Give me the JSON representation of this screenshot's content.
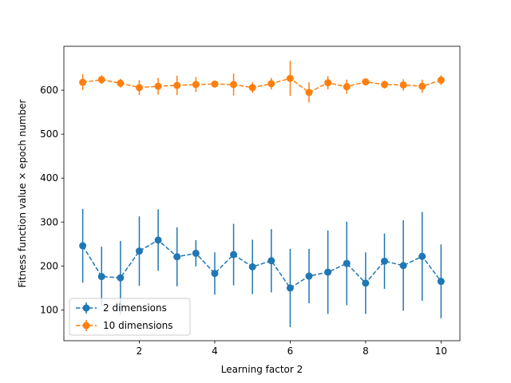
{
  "chart_data": {
    "type": "line",
    "xlabel": "Learning factor 2",
    "ylabel": "Fitness function value × epoch number",
    "xlim": [
      0.0,
      10.5
    ],
    "ylim": [
      30,
      700
    ],
    "xticks": [
      2,
      4,
      6,
      8,
      10
    ],
    "yticks": [
      100,
      200,
      300,
      400,
      500,
      600
    ],
    "legend_position": "lower-left",
    "grid": false,
    "x": [
      0.5,
      1.0,
      1.5,
      2.0,
      2.5,
      3.0,
      3.5,
      4.0,
      4.5,
      5.0,
      5.5,
      6.0,
      6.5,
      7.0,
      7.5,
      8.0,
      8.5,
      9.0,
      9.5,
      10.0
    ],
    "series": [
      {
        "name": "2 dimensions",
        "color": "#1f77b4",
        "values": [
          246,
          176,
          173,
          234,
          259,
          221,
          229,
          183,
          226,
          198,
          212,
          150,
          177,
          186,
          206,
          161,
          211,
          201,
          222,
          165
        ],
        "errors": [
          84,
          68,
          84,
          79,
          70,
          67,
          30,
          48,
          70,
          62,
          72,
          89,
          62,
          95,
          95,
          70,
          63,
          103,
          101,
          84
        ]
      },
      {
        "name": "10 dimensions",
        "color": "#ff7f0e",
        "values": [
          618,
          624,
          616,
          606,
          609,
          611,
          613,
          614,
          613,
          606,
          615,
          627,
          595,
          617,
          608,
          619,
          613,
          612,
          609,
          623
        ],
        "errors": [
          18,
          10,
          10,
          17,
          19,
          22,
          17,
          5,
          25,
          12,
          13,
          40,
          23,
          15,
          16,
          6,
          9,
          13,
          15,
          11
        ]
      }
    ]
  }
}
